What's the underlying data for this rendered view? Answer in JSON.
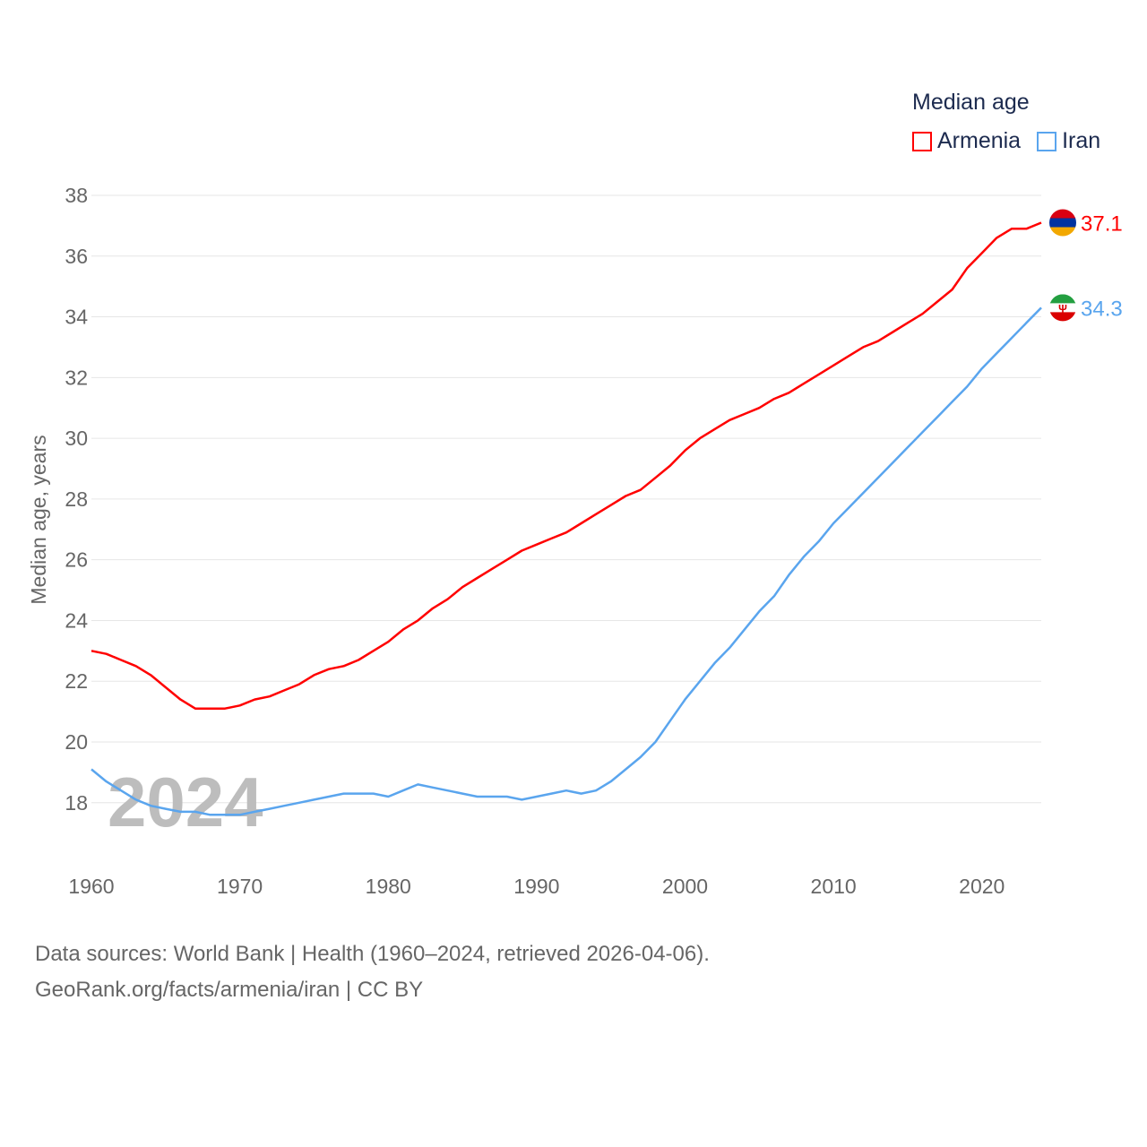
{
  "chart_data": {
    "type": "line",
    "title": "",
    "legend_title": "Median age",
    "ylabel": "Median age, years",
    "xlabel": "",
    "watermark_year": "2024",
    "xlim": [
      1960,
      2024
    ],
    "ylim": [
      16.4,
      38
    ],
    "x_ticks": [
      1960,
      1970,
      1980,
      1990,
      2000,
      2010,
      2020
    ],
    "y_ticks": [
      18,
      20,
      22,
      24,
      26,
      28,
      30,
      32,
      34,
      36,
      38
    ],
    "grid": true,
    "legend_position": "top-right",
    "x": [
      1960,
      1961,
      1962,
      1963,
      1964,
      1965,
      1966,
      1967,
      1968,
      1969,
      1970,
      1971,
      1972,
      1973,
      1974,
      1975,
      1976,
      1977,
      1978,
      1979,
      1980,
      1981,
      1982,
      1983,
      1984,
      1985,
      1986,
      1987,
      1988,
      1989,
      1990,
      1991,
      1992,
      1993,
      1994,
      1995,
      1996,
      1997,
      1998,
      1999,
      2000,
      2001,
      2002,
      2003,
      2004,
      2005,
      2006,
      2007,
      2008,
      2009,
      2010,
      2011,
      2012,
      2013,
      2014,
      2015,
      2016,
      2017,
      2018,
      2019,
      2020,
      2021,
      2022,
      2023,
      2024
    ],
    "series": [
      {
        "name": "Armenia",
        "color": "#ff0000",
        "end_label": "37.1",
        "values": [
          23.0,
          22.9,
          22.7,
          22.5,
          22.2,
          21.8,
          21.4,
          21.1,
          21.1,
          21.1,
          21.2,
          21.4,
          21.5,
          21.7,
          21.9,
          22.2,
          22.4,
          22.5,
          22.7,
          23.0,
          23.3,
          23.7,
          24.0,
          24.4,
          24.7,
          25.1,
          25.4,
          25.7,
          26.0,
          26.3,
          26.5,
          26.7,
          26.9,
          27.2,
          27.5,
          27.8,
          28.1,
          28.3,
          28.7,
          29.1,
          29.6,
          30.0,
          30.3,
          30.6,
          30.8,
          31.0,
          31.3,
          31.5,
          31.8,
          32.1,
          32.4,
          32.7,
          33.0,
          33.2,
          33.5,
          33.8,
          34.1,
          34.5,
          34.9,
          35.6,
          36.1,
          36.6,
          36.9,
          36.9,
          37.1
        ]
      },
      {
        "name": "Iran",
        "color": "#5aa5ee",
        "end_label": "34.3",
        "values": [
          19.1,
          18.7,
          18.4,
          18.1,
          17.9,
          17.8,
          17.7,
          17.7,
          17.6,
          17.6,
          17.6,
          17.7,
          17.8,
          17.9,
          18.0,
          18.1,
          18.2,
          18.3,
          18.3,
          18.3,
          18.2,
          18.4,
          18.6,
          18.5,
          18.4,
          18.3,
          18.2,
          18.2,
          18.2,
          18.1,
          18.2,
          18.3,
          18.4,
          18.3,
          18.4,
          18.7,
          19.1,
          19.5,
          20.0,
          20.7,
          21.4,
          22.0,
          22.6,
          23.1,
          23.7,
          24.3,
          24.8,
          25.5,
          26.1,
          26.6,
          27.2,
          27.7,
          28.2,
          28.7,
          29.2,
          29.7,
          30.2,
          30.7,
          31.2,
          31.7,
          32.3,
          32.8,
          33.3,
          33.8,
          34.3
        ]
      }
    ]
  },
  "footer": {
    "source_line": "Data sources: World Bank | Health (1960–2024, retrieved 2026-04-06).",
    "link_line": "GeoRank.org/facts/armenia/iran | CC BY"
  }
}
